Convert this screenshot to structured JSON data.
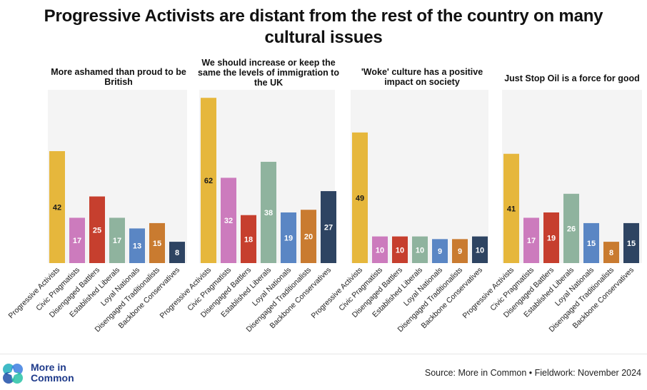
{
  "title_line1": "Progressive Activists are distant from the rest of the country on many",
  "title_line2": "cultural issues",
  "chart_data": [
    {
      "type": "bar",
      "title": "More ashamed than proud to be British",
      "categories": [
        "Progressive Activists",
        "Civic Pragmatists",
        "Disengaged Battlers",
        "Established Liberals",
        "Loyal Nationals",
        "Disengaged Traditionalists",
        "Backbone Conservatives"
      ],
      "values": [
        42,
        17,
        25,
        17,
        13,
        15,
        8
      ],
      "ylim": [
        0,
        65
      ]
    },
    {
      "type": "bar",
      "title": "We should increase or keep the same the levels of immigration to the UK",
      "categories": [
        "Progressive Activists",
        "Civic Pragmatists",
        "Disengaged Battlers",
        "Established Liberals",
        "Loyal Nationals",
        "Disengaged Traditionalists",
        "Backbone Conservatives"
      ],
      "values": [
        62,
        32,
        18,
        38,
        19,
        20,
        27
      ],
      "ylim": [
        0,
        65
      ]
    },
    {
      "type": "bar",
      "title": "'Woke' culture has a positive impact on society",
      "categories": [
        "Progressive Activists",
        "Civic Pragmatists",
        "Disengaged Battlers",
        "Established Liberals",
        "Loyal Nationals",
        "Disengaged Traditionalists",
        "Backbone Conservatives"
      ],
      "values": [
        49,
        10,
        10,
        10,
        9,
        9,
        10
      ],
      "ylim": [
        0,
        65
      ]
    },
    {
      "type": "bar",
      "title": "Just Stop Oil is a force for good",
      "categories": [
        "Progressive Activists",
        "Civic Pragmatists",
        "Disengaged Battlers",
        "Established Liberals",
        "Loyal Nationals",
        "Disengaged Traditionalists",
        "Backbone Conservatives"
      ],
      "values": [
        41,
        17,
        19,
        26,
        15,
        8,
        15
      ],
      "ylim": [
        0,
        65
      ]
    }
  ],
  "colors": {
    "Progressive Activists": "#e6b73c",
    "Civic Pragmatists": "#cc7bbd",
    "Disengaged Battlers": "#c63f2e",
    "Established Liberals": "#8fb39e",
    "Loyal Nationals": "#5a86c4",
    "Disengaged Traditionalists": "#c97b30",
    "Backbone Conservatives": "#2e4462"
  },
  "value_label_dark_for": [
    "Progressive Activists"
  ],
  "panel_background": "#f4f4f4",
  "footer": {
    "logo_line1": "More in",
    "logo_line2": "Common",
    "source": "Source: More in Common • Fieldwork: November 2024"
  }
}
